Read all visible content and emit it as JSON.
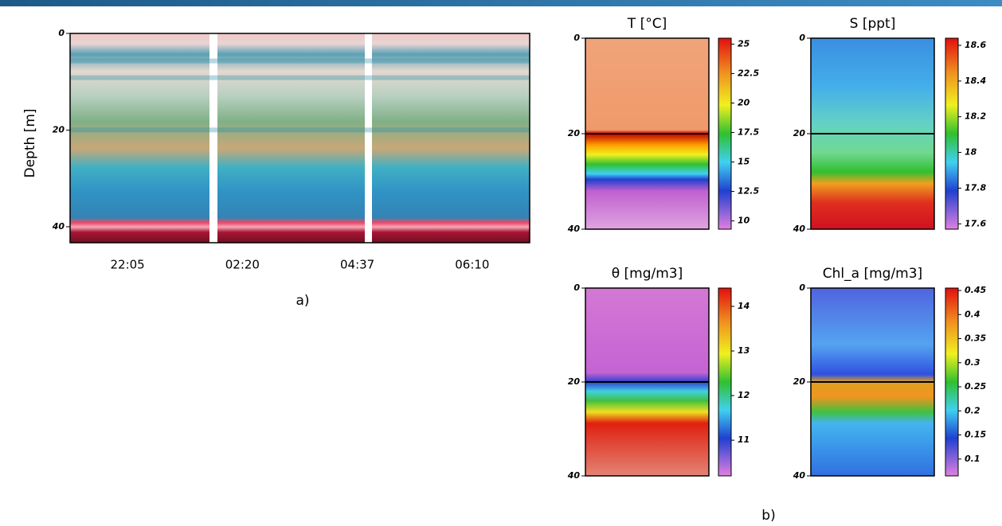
{
  "chart_data": [
    {
      "type": "heatmap",
      "ylabel": "Depth [m]",
      "categories": [
        "22:05",
        "02:20",
        "04:37",
        "06:10"
      ],
      "ylim": [
        0,
        43.3
      ],
      "yticks": [
        0,
        20,
        40
      ],
      "caption": "a)"
    },
    {
      "type": "heatmap",
      "title": "T [°C]",
      "ylim": [
        0,
        40
      ],
      "yticks": [
        0,
        20,
        40
      ],
      "clim": [
        9.3,
        25.5
      ],
      "cticks": [
        25,
        22.5,
        20,
        17.5,
        15,
        12.5,
        10
      ]
    },
    {
      "type": "heatmap",
      "title": "S [ppt]",
      "ylim": [
        0,
        40
      ],
      "yticks": [
        0,
        20,
        40
      ],
      "clim": [
        17.57,
        18.64
      ],
      "cticks": [
        18.6,
        18.4,
        18.2,
        18,
        17.8,
        17.6
      ]
    },
    {
      "type": "heatmap",
      "title": "θ [mg/m3]",
      "ylim": [
        0,
        40
      ],
      "yticks": [
        0,
        20,
        40
      ],
      "clim": [
        10.2,
        14.41
      ],
      "cticks": [
        14,
        13,
        12,
        11
      ]
    },
    {
      "type": "heatmap",
      "title": "Chl_a [mg/m3]",
      "ylim": [
        0,
        40
      ],
      "yticks": [
        0,
        20,
        40
      ],
      "clim": [
        0.065,
        0.455
      ],
      "cticks": [
        0.45,
        0.4,
        0.35,
        0.3,
        0.25,
        0.2,
        0.15,
        0.1
      ]
    }
  ],
  "caption_b": "b)"
}
